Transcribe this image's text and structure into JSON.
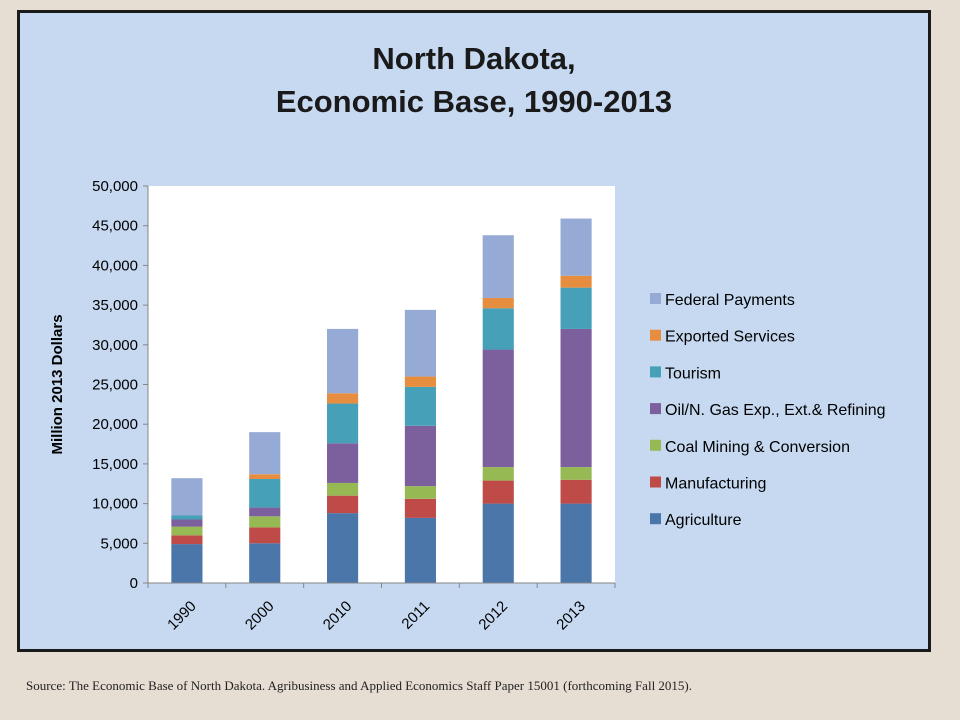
{
  "slide": {
    "title_line1": "North Dakota,",
    "title_line2": "Economic Base, 1990-2013",
    "source": "Source:  The Economic Base of North Dakota. Agribusiness and Applied Economics Staff Paper 15001 (forthcoming Fall 2015)."
  },
  "chart_data": {
    "type": "bar",
    "stacked": true,
    "title": "North Dakota, Economic Base, 1990-2013",
    "xlabel": "",
    "ylabel": "Million 2013 Dollars",
    "ylim": [
      0,
      50000
    ],
    "yticks": [
      0,
      5000,
      10000,
      15000,
      20000,
      25000,
      30000,
      35000,
      40000,
      45000,
      50000
    ],
    "ytick_labels": [
      "0",
      "5,000",
      "10,000",
      "15,000",
      "20,000",
      "25,000",
      "30,000",
      "35,000",
      "40,000",
      "45,000",
      "50,000"
    ],
    "categories": [
      "1990",
      "2000",
      "2010",
      "2011",
      "2012",
      "2013"
    ],
    "legend_position": "right",
    "grid": false,
    "series": [
      {
        "name": "Agriculture",
        "color": "#4a76aa",
        "values": [
          4900,
          5000,
          8800,
          8200,
          10000,
          10000
        ]
      },
      {
        "name": "Manufacturing",
        "color": "#be4b48",
        "values": [
          1100,
          2000,
          2200,
          2400,
          2900,
          3000
        ]
      },
      {
        "name": "Coal Mining & Conversion",
        "color": "#97b954",
        "values": [
          1100,
          1400,
          1600,
          1600,
          1700,
          1600
        ]
      },
      {
        "name": "Oil/N. Gas Exp., Ext.& Refining",
        "color": "#7c5f9d",
        "values": [
          900,
          1100,
          5000,
          7600,
          14800,
          17400
        ]
      },
      {
        "name": "Tourism",
        "color": "#45a0b8",
        "values": [
          500,
          3600,
          5000,
          4900,
          5200,
          5200
        ]
      },
      {
        "name": "Exported Services",
        "color": "#e78d40",
        "values": [
          0,
          600,
          1300,
          1300,
          1300,
          1500
        ]
      },
      {
        "name": "Federal Payments",
        "color": "#95aad4",
        "values": [
          4700,
          5300,
          8100,
          8400,
          7900,
          7200
        ]
      }
    ]
  }
}
